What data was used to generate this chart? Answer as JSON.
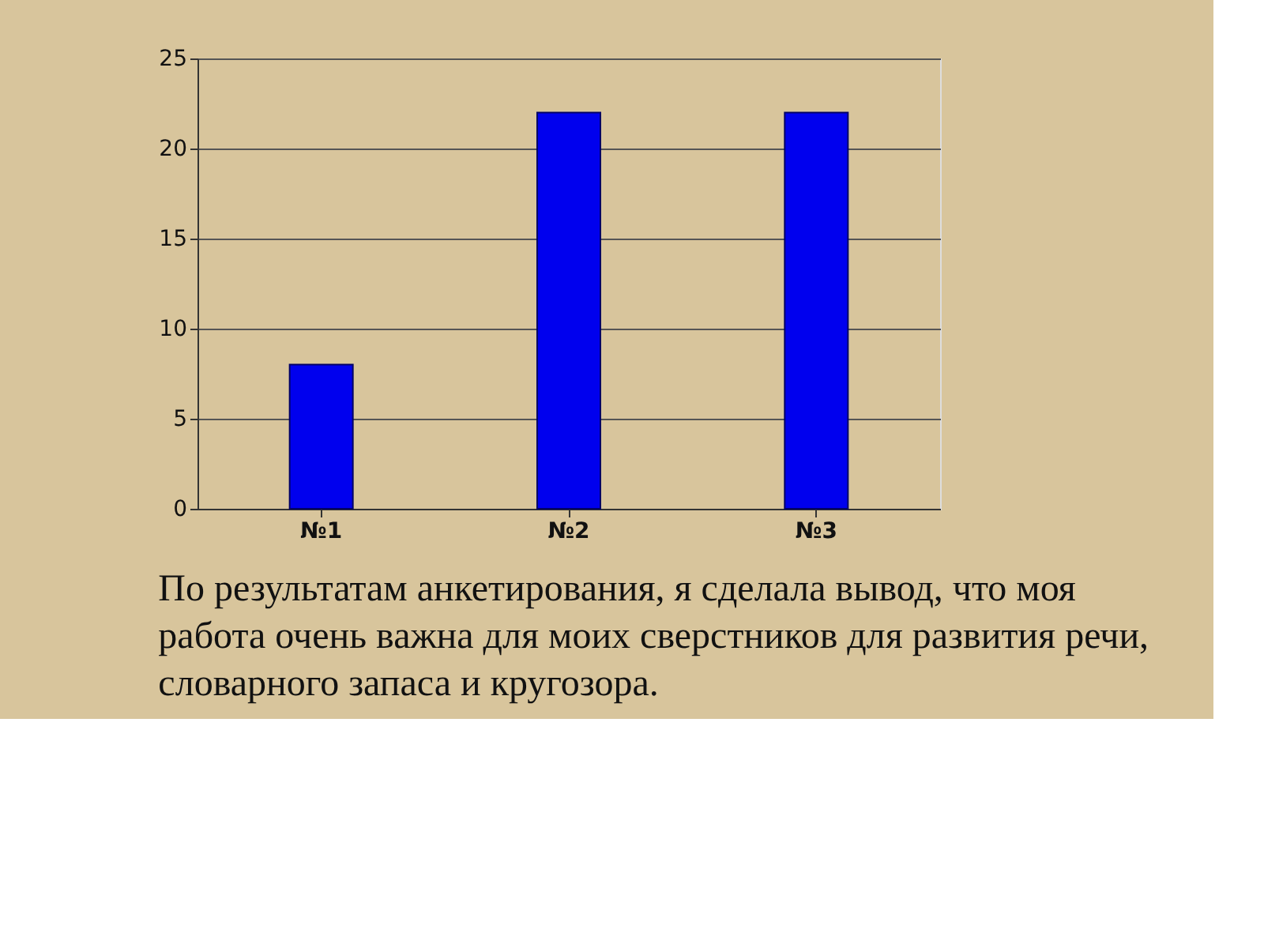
{
  "chart_data": {
    "type": "bar",
    "categories": [
      "№1",
      "№2",
      "№3"
    ],
    "series": [
      {
        "color": "#0000ee",
        "values": [
          8,
          22,
          22
        ]
      }
    ],
    "ylim": [
      0,
      25
    ],
    "yticks": [
      0,
      5,
      10,
      15,
      20,
      25
    ],
    "grid": "y",
    "annotations": [
      "По результатам анкетирования, я сделала вывод, что моя работа очень важна для моих сверстников для развития речи, словарного запаса и кругозора."
    ]
  }
}
